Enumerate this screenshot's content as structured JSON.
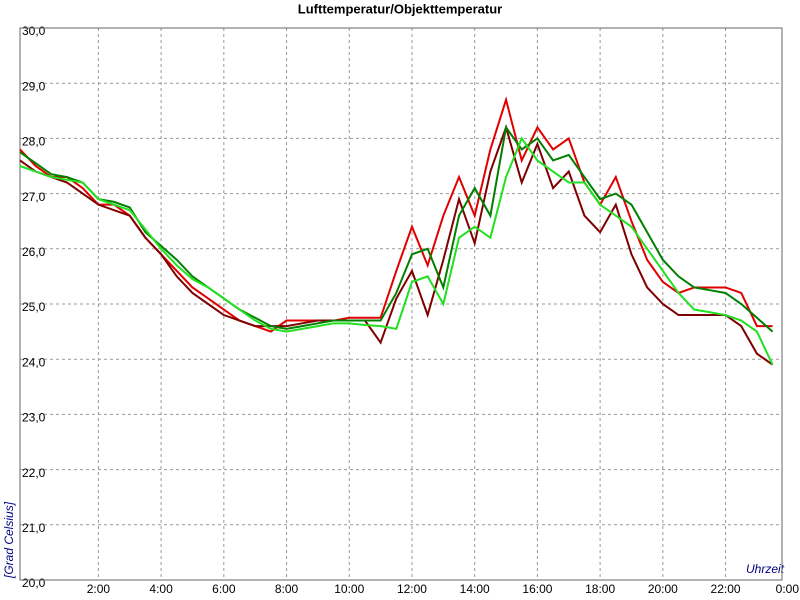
{
  "chart_data": {
    "type": "line",
    "title": "Lufttemperatur/Objekttemperatur",
    "y_label": "[Grad Celsius]",
    "x_label": "Uhrzeit",
    "grid": true,
    "x": [
      -0.5,
      0,
      0.5,
      1,
      1.5,
      2,
      2.5,
      3,
      3.5,
      4,
      4.5,
      5,
      5.5,
      6,
      6.5,
      7,
      7.5,
      8,
      8.5,
      9,
      9.5,
      10,
      10.5,
      11,
      11.5,
      12,
      12.5,
      13,
      13.5,
      14,
      14.5,
      15,
      15.5,
      16,
      16.5,
      17,
      17.5,
      18,
      18.5,
      19,
      19.5,
      20,
      20.5,
      21,
      21.5,
      22,
      22.5,
      23,
      23.5
    ],
    "xlim": [
      -0.5,
      23.8
    ],
    "xticks": [
      {
        "value": 2,
        "label": "2:00"
      },
      {
        "value": 4,
        "label": "4:00"
      },
      {
        "value": 6,
        "label": "6:00"
      },
      {
        "value": 8,
        "label": "8:00"
      },
      {
        "value": 10,
        "label": "10:00"
      },
      {
        "value": 12,
        "label": "12:00"
      },
      {
        "value": 14,
        "label": "14:00"
      },
      {
        "value": 16,
        "label": "16:00"
      },
      {
        "value": 18,
        "label": "18:00"
      },
      {
        "value": 20,
        "label": "20:00"
      },
      {
        "value": 22,
        "label": "22:00"
      },
      {
        "value": 24,
        "label": "0:00"
      }
    ],
    "ylim": [
      20,
      30
    ],
    "yticks": [
      {
        "value": 20,
        "label": "20,0"
      },
      {
        "value": 21,
        "label": "21,0"
      },
      {
        "value": 22,
        "label": "22,0"
      },
      {
        "value": 23,
        "label": "23,0"
      },
      {
        "value": 24,
        "label": "24,0"
      },
      {
        "value": 25,
        "label": "25,0"
      },
      {
        "value": 26,
        "label": "26,0"
      },
      {
        "value": 27,
        "label": "27,0"
      },
      {
        "value": 28,
        "label": "28,0"
      },
      {
        "value": 29,
        "label": "29,0"
      },
      {
        "value": 30,
        "label": "30,0"
      }
    ],
    "series": [
      {
        "color": "#e00000",
        "values": [
          27.8,
          27.5,
          27.3,
          27.3,
          27.1,
          26.8,
          26.8,
          26.6,
          26.2,
          25.9,
          25.6,
          25.3,
          25.1,
          24.9,
          24.7,
          24.6,
          24.5,
          24.7,
          24.7,
          24.7,
          24.7,
          24.75,
          24.75,
          24.75,
          25.6,
          26.4,
          25.7,
          26.6,
          27.3,
          26.6,
          27.8,
          28.7,
          27.6,
          28.2,
          27.8,
          28.0,
          27.2,
          26.8,
          27.3,
          26.5,
          25.8,
          25.4,
          25.2,
          25.3,
          25.3,
          25.3,
          25.2,
          24.6,
          24.6
        ]
      },
      {
        "color": "#800000",
        "values": [
          27.6,
          27.4,
          27.3,
          27.2,
          27.0,
          26.8,
          26.7,
          26.6,
          26.2,
          25.9,
          25.5,
          25.2,
          25.0,
          24.8,
          24.7,
          24.6,
          24.6,
          24.6,
          24.65,
          24.7,
          24.7,
          24.7,
          24.7,
          24.3,
          25.1,
          25.6,
          24.8,
          25.8,
          26.9,
          26.1,
          27.4,
          28.2,
          27.2,
          27.9,
          27.1,
          27.4,
          26.6,
          26.3,
          26.8,
          25.9,
          25.3,
          25.0,
          24.8,
          24.8,
          24.8,
          24.8,
          24.6,
          24.1,
          23.9
        ]
      },
      {
        "color": "#008000",
        "values": [
          27.75,
          27.55,
          27.35,
          27.3,
          27.2,
          26.9,
          26.85,
          26.75,
          26.3,
          26.05,
          25.8,
          25.5,
          25.3,
          25.1,
          24.9,
          24.75,
          24.6,
          24.55,
          24.6,
          24.65,
          24.7,
          24.7,
          24.7,
          24.7,
          25.2,
          25.9,
          26.0,
          25.3,
          26.6,
          27.1,
          26.6,
          28.2,
          27.8,
          28.0,
          27.6,
          27.7,
          27.3,
          26.9,
          27.0,
          26.8,
          26.3,
          25.8,
          25.5,
          25.3,
          25.25,
          25.2,
          25.0,
          24.75,
          24.5
        ]
      },
      {
        "color": "#20e020",
        "values": [
          27.5,
          27.4,
          27.3,
          27.25,
          27.2,
          26.9,
          26.8,
          26.7,
          26.35,
          26.0,
          25.7,
          25.45,
          25.3,
          25.1,
          24.9,
          24.7,
          24.55,
          24.5,
          24.55,
          24.6,
          24.65,
          24.65,
          24.62,
          24.6,
          24.55,
          25.4,
          25.5,
          25.0,
          26.2,
          26.4,
          26.2,
          27.3,
          28.0,
          27.6,
          27.4,
          27.2,
          27.2,
          26.8,
          26.6,
          26.4,
          26.0,
          25.6,
          25.2,
          24.9,
          24.85,
          24.8,
          24.7,
          24.5,
          23.9
        ]
      }
    ]
  }
}
